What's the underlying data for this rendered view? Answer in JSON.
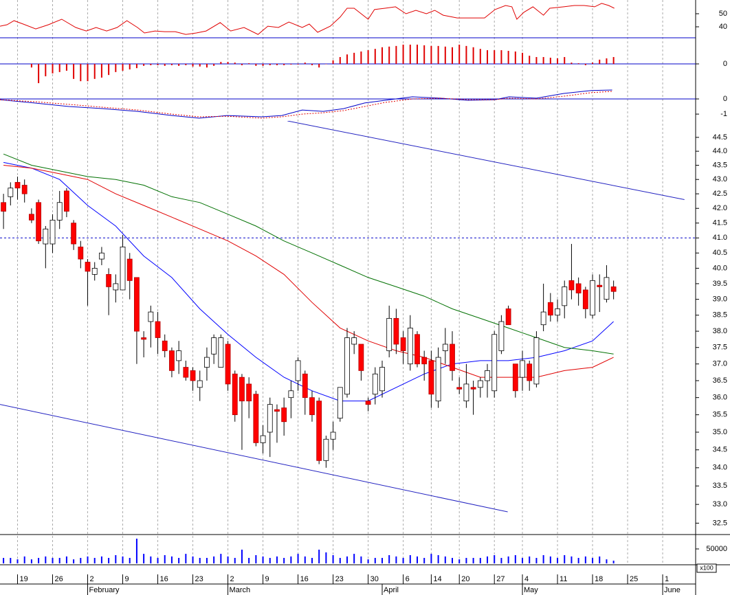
{
  "chart_data": [
    {
      "type": "line",
      "xlim": [
        -0.5,
        98.7
      ],
      "ylim": [
        31.6,
        60.5
      ],
      "yticks": [
        40,
        50
      ],
      "series": [
        {
          "color": "#e00000",
          "x": [
            -0.5,
            0.5,
            1.5,
            2.8,
            4.6,
            6.4,
            8.3,
            10.3,
            11.8,
            13.2,
            14.7,
            16.2,
            17.6,
            19.1,
            20.1,
            21.6,
            23.0,
            24.5,
            26.0,
            27.5,
            28.9,
            30.9,
            32.4,
            34.3,
            36.3,
            37.7,
            39.2,
            40.7,
            42.6,
            43.6,
            44.8,
            46.6,
            48.0,
            49.0,
            50.0,
            51.0,
            52.0,
            52.9,
            54.4,
            55.9,
            57.4,
            58.8,
            60.3,
            61.5,
            62.7,
            64.7,
            67.2,
            68.6,
            70.1,
            71.6,
            72.5,
            73.2,
            74.2,
            75.5,
            77.0,
            77.9,
            79.9,
            81.4,
            82.8,
            84.3,
            85.3,
            86.3,
            87.1
          ],
          "values": [
            40.5,
            41.6,
            44.7,
            42.1,
            38.4,
            41.6,
            45.8,
            39.5,
            36.8,
            39.5,
            36.8,
            39.5,
            44.7,
            39.5,
            35.3,
            36.8,
            36.3,
            36.3,
            34.2,
            35.3,
            36.8,
            43.2,
            36.8,
            39.5,
            34.2,
            40.5,
            39.5,
            43.7,
            39.5,
            42.1,
            35.8,
            40.5,
            47.4,
            54.2,
            54.2,
            50.0,
            45.8,
            53.2,
            54.2,
            55.3,
            50.0,
            52.6,
            50.0,
            52.6,
            48.9,
            46.8,
            46.8,
            46.8,
            53.2,
            56.3,
            55.3,
            45.8,
            51.1,
            55.3,
            48.9,
            54.2,
            55.3,
            56.3,
            56.3,
            55.3,
            57.9,
            56.3,
            54.2
          ]
        }
      ]
    },
    {
      "type": "bar",
      "xlim": [
        -0.5,
        98.7
      ],
      "ylim": [
        -0.8,
        0.8
      ],
      "yticks": [
        0
      ],
      "zero_line": true,
      "color": "#e00000",
      "values": [
        null,
        null,
        null,
        null,
        -0.11,
        -0.59,
        -0.38,
        -0.29,
        -0.25,
        -0.21,
        -0.46,
        -0.53,
        -0.53,
        -0.46,
        -0.42,
        -0.34,
        -0.25,
        -0.21,
        -0.17,
        -0.13,
        -0.06,
        -0.04,
        -0.04,
        -0.06,
        -0.04,
        -0.06,
        -0.04,
        -0.08,
        -0.08,
        -0.11,
        -0.06,
        0.06,
        0.06,
        0.04,
        -0.04,
        0.02,
        -0.06,
        -0.06,
        -0.04,
        -0.04,
        -0.04,
        -0.02,
        -0.02,
        0.04,
        -0.04,
        -0.11,
        0,
        0.11,
        0.21,
        0.29,
        0.34,
        0.38,
        0.42,
        0.46,
        0.51,
        0.53,
        0.55,
        0.59,
        0.59,
        0.59,
        0.57,
        0.55,
        0.55,
        0.53,
        0.51,
        0.59,
        0.55,
        0.51,
        0.46,
        0.42,
        0.42,
        0.42,
        0.4,
        0.38,
        0.34,
        0.25,
        0.21,
        0.21,
        0.19,
        0.17,
        0.21,
        0.04,
        0.02,
        -0.04,
        0.04,
        0.13,
        0.17,
        0.21
      ]
    },
    {
      "type": "line",
      "xlim": [
        -0.5,
        98.7
      ],
      "ylim": [
        -1.45,
        0.86
      ],
      "yticks": [
        0,
        -1
      ],
      "zero_line": true,
      "series": [
        {
          "color": "#0000c8",
          "x": [
            -0.5,
            4.4,
            9.3,
            14.2,
            19.1,
            24.0,
            27.9,
            31.9,
            36.8,
            39.7,
            42.6,
            45.6,
            48.5,
            51.5,
            54.4,
            58.3,
            62.3,
            66.2,
            70.1,
            72.1,
            76.0,
            79.9,
            83.8,
            86.8
          ],
          "values": [
            -0.05,
            -0.27,
            -0.5,
            -0.64,
            -0.82,
            -1.09,
            -1.27,
            -1.09,
            -1.18,
            -1.09,
            -0.73,
            -0.82,
            -0.64,
            -0.27,
            -0.09,
            0.14,
            0.05,
            -0.09,
            -0.05,
            0.14,
            0.05,
            0.36,
            0.55,
            0.59
          ]
        },
        {
          "color": "#e00000",
          "dash": true,
          "x": [
            -0.5,
            4.4,
            9.3,
            14.2,
            19.1,
            24.0,
            27.9,
            31.9,
            36.8,
            39.7,
            42.6,
            45.6,
            48.5,
            51.5,
            54.4,
            58.3,
            62.3,
            66.2,
            70.1,
            72.1,
            76.0,
            79.9,
            83.8,
            86.8
          ],
          "values": [
            -0.05,
            -0.18,
            -0.36,
            -0.55,
            -0.73,
            -1.0,
            -1.18,
            -1.14,
            -1.27,
            -1.18,
            -1.0,
            -0.91,
            -0.77,
            -0.5,
            -0.23,
            0,
            0.05,
            -0.05,
            -0.05,
            0.05,
            0,
            0.18,
            0.41,
            0.5
          ]
        }
      ]
    },
    {
      "type": "candlestick",
      "xlim": [
        -0.5,
        98.7
      ],
      "ylim": [
        32.2,
        45.1
      ],
      "log_scale": true,
      "up_color": "#ffffff",
      "down_color": "#ff0000",
      "yticks": [
        44.5,
        {
          "value": 44,
          "label": "44.0"
        },
        43.5,
        {
          "value": 43,
          "label": "43.0"
        },
        42.5,
        {
          "value": 42,
          "label": "42.0"
        },
        41.5,
        {
          "value": 41,
          "label": "41.0"
        },
        40.5,
        {
          "value": 40,
          "label": "40.0"
        },
        39.5,
        {
          "value": 39,
          "label": "39.0"
        },
        38.5,
        {
          "value": 38,
          "label": "38.0"
        },
        37.5,
        {
          "value": 37,
          "label": "37.0"
        },
        36.5,
        {
          "value": 36,
          "label": "36.0"
        },
        35.5,
        {
          "value": 35,
          "label": "35.0"
        },
        34.5,
        {
          "value": 34,
          "label": "34.0"
        },
        33.5,
        {
          "value": 33,
          "label": "33.0"
        },
        32.5
      ],
      "open": [
        42.2,
        42.4,
        42.9,
        42.8,
        41.8,
        42.2,
        40.8,
        40.8,
        41.6,
        42.6,
        41.5,
        40.7,
        40.2,
        39.8,
        40.3,
        39.8,
        39.3,
        39.3,
        40.3,
        39.7,
        37.8,
        38.3,
        38.3,
        37.7,
        37.4,
        37.1,
        36.9,
        36.8,
        36.3,
        36.9,
        37.3,
        36.9,
        37.6,
        36.7,
        36.6,
        36.4,
        36.1,
        34.7,
        35.0,
        35.65,
        35.7,
        36.0,
        36.5,
        36.7,
        36.0,
        35.9,
        34.2,
        34.8,
        35.4,
        36.1,
        37.6,
        37.6,
        35.9,
        36.1,
        36.2,
        37.4,
        38.4,
        37.8,
        37.0,
        37.9,
        37.2,
        37.1,
        35.9,
        37.4,
        37.6,
        36.3,
        35.9,
        36.3,
        36.3,
        36.5,
        36.2,
        37.4,
        38.7,
        37.0,
        36.6,
        37.0,
        36.4,
        38.2,
        38.9,
        38.5,
        38.8,
        39.6,
        39.5,
        39.3,
        38.5,
        39.45,
        39.0,
        39.4
      ],
      "high": [
        42.5,
        42.9,
        43.1,
        43.0,
        42.0,
        42.3,
        41.4,
        41.8,
        42.6,
        42.7,
        41.6,
        40.9,
        40.3,
        40.2,
        40.7,
        40.0,
        39.8,
        41.1,
        40.5,
        39.7,
        38.0,
        38.8,
        38.6,
        37.9,
        37.5,
        37.7,
        37.1,
        36.9,
        36.8,
        37.5,
        37.9,
        37.9,
        37.7,
        36.8,
        36.7,
        36.6,
        36.2,
        35.2,
        36.0,
        35.8,
        36.0,
        36.5,
        37.2,
        36.8,
        36.2,
        36.0,
        34.9,
        35.3,
        36.3,
        38.1,
        38.0,
        37.6,
        36.0,
        36.9,
        37.1,
        38.8,
        38.7,
        38.0,
        38.5,
        38.0,
        37.4,
        37.4,
        37.5,
        38.1,
        38.0,
        36.6,
        37.0,
        36.5,
        36.6,
        37.0,
        38.0,
        38.5,
        38.8,
        37.0,
        37.4,
        37.1,
        38.0,
        39.5,
        39.2,
        39.0,
        39.6,
        40.8,
        39.7,
        39.4,
        39.8,
        39.8,
        40.1,
        39.6
      ],
      "low": [
        41.3,
        42.1,
        42.3,
        42.2,
        41.5,
        40.8,
        40.0,
        40.5,
        41.3,
        41.7,
        40.6,
        40.0,
        38.8,
        39.6,
        40.1,
        38.5,
        38.9,
        39.3,
        39.0,
        37.0,
        37.2,
        37.5,
        37.3,
        37.2,
        36.6,
        36.7,
        36.5,
        36.2,
        35.9,
        36.5,
        37.0,
        36.9,
        36.2,
        35.3,
        34.5,
        35.4,
        34.6,
        34.4,
        34.3,
        34.7,
        34.9,
        35.4,
        36.2,
        35.5,
        35.3,
        34.1,
        34.0,
        34.5,
        35.3,
        36.0,
        37.3,
        36.5,
        35.6,
        35.8,
        36.0,
        37.2,
        37.3,
        37.0,
        36.8,
        36.9,
        36.5,
        35.7,
        35.7,
        37.0,
        36.5,
        36.1,
        35.7,
        35.5,
        36.0,
        36.0,
        36.0,
        37.3,
        38.2,
        36.0,
        36.2,
        36.2,
        36.3,
        38.0,
        38.3,
        38.3,
        38.4,
        39.0,
        38.8,
        38.4,
        38.4,
        38.6,
        38.9,
        39.0
      ],
      "close": [
        41.9,
        42.7,
        42.7,
        42.5,
        41.6,
        40.9,
        41.3,
        41.6,
        42.2,
        41.9,
        40.8,
        40.3,
        39.9,
        40.0,
        40.5,
        39.4,
        39.5,
        40.7,
        39.6,
        38.0,
        37.75,
        38.6,
        37.8,
        37.4,
        36.8,
        37.4,
        36.6,
        36.5,
        36.5,
        37.2,
        37.8,
        37.8,
        36.4,
        35.5,
        35.9,
        35.9,
        34.7,
        34.9,
        35.8,
        35.6,
        35.3,
        36.2,
        37.1,
        36.0,
        35.5,
        34.2,
        34.8,
        35.0,
        36.3,
        37.8,
        37.8,
        36.8,
        35.8,
        36.7,
        36.9,
        38.4,
        37.6,
        37.4,
        38.1,
        37.0,
        37.0,
        36.1,
        37.2,
        37.6,
        36.8,
        36.25,
        36.4,
        36.25,
        36.5,
        36.8,
        37.9,
        38.3,
        38.2,
        36.2,
        37.1,
        36.5,
        37.8,
        38.6,
        38.5,
        38.7,
        39.4,
        39.3,
        39.2,
        38.7,
        39.6,
        39.4,
        39.7,
        39.25
      ],
      "moving_averages": [
        {
          "color": "#0000ff",
          "x": [
            0,
            4,
            8,
            12,
            16,
            20,
            24,
            28,
            32,
            36,
            40,
            44,
            48,
            52,
            56,
            60,
            64,
            68,
            72,
            76,
            80,
            84,
            87
          ],
          "values": [
            43.6,
            43.4,
            43.0,
            42.1,
            41.4,
            40.4,
            39.7,
            38.7,
            37.9,
            37.2,
            36.6,
            36.2,
            35.9,
            35.9,
            36.3,
            36.7,
            37.0,
            37.1,
            37.1,
            37.2,
            37.4,
            37.7,
            38.3
          ]
        },
        {
          "color": "#e00000",
          "x": [
            0,
            4,
            8,
            12,
            16,
            20,
            24,
            28,
            32,
            36,
            40,
            44,
            48,
            52,
            56,
            60,
            64,
            68,
            72,
            76,
            80,
            84,
            87
          ],
          "values": [
            43.5,
            43.4,
            43.2,
            43.0,
            42.5,
            42.1,
            41.7,
            41.3,
            40.9,
            40.4,
            39.8,
            38.9,
            38.1,
            37.7,
            37.4,
            37.2,
            36.9,
            36.6,
            36.6,
            36.6,
            36.8,
            36.9,
            37.2
          ]
        },
        {
          "color": "#007000",
          "x": [
            0,
            4,
            8,
            12,
            16,
            20,
            24,
            28,
            32,
            36,
            40,
            44,
            48,
            52,
            56,
            60,
            64,
            68,
            72,
            76,
            80,
            84,
            87
          ],
          "values": [
            43.9,
            43.5,
            43.3,
            43.1,
            43.0,
            42.8,
            42.4,
            42.2,
            41.8,
            41.4,
            40.9,
            40.5,
            40.1,
            39.7,
            39.4,
            39.1,
            38.7,
            38.4,
            38.1,
            37.8,
            37.5,
            37.4,
            37.3
          ]
        }
      ],
      "trendlines": [
        {
          "color": "#2020c0",
          "x": [
            40.5,
            97.1
          ],
          "values": [
            45.1,
            42.3
          ]
        },
        {
          "color": "#2020c0",
          "x": [
            -0.5,
            71.9
          ],
          "values": [
            35.8,
            32.8
          ]
        }
      ],
      "reference_line": {
        "value": 41,
        "color": "#0000c8",
        "dash": true
      }
    },
    {
      "type": "bar",
      "xlim": [
        -0.5,
        98.7
      ],
      "ylim": [
        0,
        95000
      ],
      "yticks": [
        50000
      ],
      "color": "#0000ff",
      "unit_label": "x100",
      "values": [
        19000,
        19000,
        14000,
        24000,
        14000,
        19000,
        24000,
        19000,
        19000,
        24000,
        14000,
        19000,
        24000,
        19000,
        24000,
        19000,
        28500,
        24000,
        19000,
        85500,
        33000,
        24000,
        19000,
        28500,
        24000,
        19000,
        33000,
        24000,
        19000,
        19000,
        24000,
        33000,
        24000,
        19000,
        47500,
        19000,
        28500,
        24000,
        19000,
        24000,
        19000,
        24000,
        33000,
        24000,
        19000,
        47500,
        38000,
        28500,
        19000,
        24000,
        33000,
        24000,
        14000,
        19000,
        19000,
        28500,
        24000,
        19000,
        28500,
        24000,
        19000,
        33000,
        28500,
        24000,
        19000,
        14000,
        19000,
        19000,
        19000,
        24000,
        28500,
        19000,
        24000,
        28500,
        19000,
        24000,
        19000,
        28500,
        24000,
        19000,
        28500,
        24000,
        19000,
        24000,
        19000,
        24000,
        14000,
        9500
      ],
      "xticks": [
        {
          "value": 2,
          "label": "19"
        },
        {
          "value": 7,
          "label": "26"
        },
        {
          "value": 12,
          "label": "2"
        },
        {
          "value": 17,
          "label": "9"
        },
        {
          "value": 22,
          "label": "16"
        },
        {
          "value": 27,
          "label": "23"
        },
        {
          "value": 32,
          "label": "2"
        },
        {
          "value": 37,
          "label": "9"
        },
        {
          "value": 42,
          "label": "16"
        },
        {
          "value": 47,
          "label": "23"
        },
        {
          "value": 52,
          "label": "30"
        },
        {
          "value": 57,
          "label": "6"
        },
        {
          "value": 61,
          "label": "14"
        },
        {
          "value": 65,
          "label": "20"
        },
        {
          "value": 70,
          "label": "27"
        },
        {
          "value": 74,
          "label": "4"
        },
        {
          "value": 79,
          "label": "11"
        },
        {
          "value": 84,
          "label": "18"
        },
        {
          "value": 89,
          "label": "25"
        },
        {
          "value": 94,
          "label": "1"
        }
      ],
      "month_ticks": [
        {
          "value": 12,
          "label": "February"
        },
        {
          "value": 32,
          "label": "March"
        },
        {
          "value": 54,
          "label": "April"
        },
        {
          "value": 74,
          "label": "May"
        },
        {
          "value": 94,
          "label": "June"
        }
      ]
    }
  ]
}
